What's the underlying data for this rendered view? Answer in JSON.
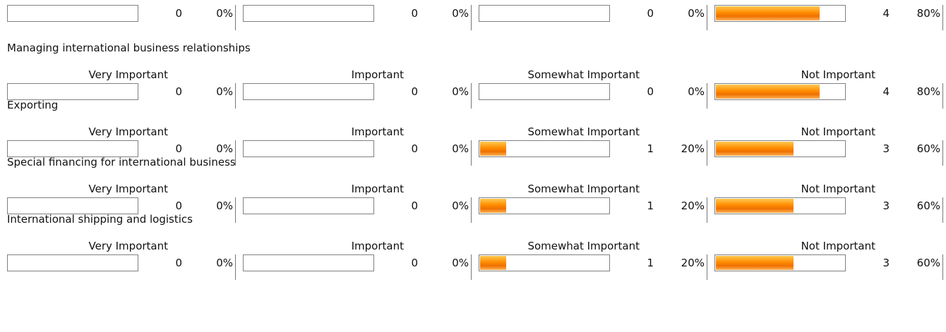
{
  "chart_data": {
    "type": "table",
    "colors": {
      "fill": "#ff8c00"
    },
    "items": [
      {
        "title": "",
        "headers": [
          "",
          "",
          "",
          ""
        ],
        "counts": [
          0,
          0,
          0,
          4
        ],
        "percents": [
          0,
          0,
          0,
          80
        ],
        "count_labels": [
          "0",
          "0",
          "0",
          "4"
        ],
        "pct_labels": [
          "0%",
          "0%",
          "0%",
          "80%"
        ]
      },
      {
        "title": "Managing international business relationships",
        "headers": [
          "Very Important",
          "Important",
          "Somewhat Important",
          "Not Important"
        ],
        "counts": [
          0,
          0,
          0,
          4
        ],
        "percents": [
          0,
          0,
          0,
          80
        ],
        "count_labels": [
          "0",
          "0",
          "0",
          "4"
        ],
        "pct_labels": [
          "0%",
          "0%",
          "0%",
          "80%"
        ]
      },
      {
        "title": "Exporting",
        "headers": [
          "Very Important",
          "Important",
          "Somewhat Important",
          "Not Important"
        ],
        "counts": [
          0,
          0,
          1,
          3
        ],
        "percents": [
          0,
          0,
          20,
          60
        ],
        "count_labels": [
          "0",
          "0",
          "1",
          "3"
        ],
        "pct_labels": [
          "0%",
          "0%",
          "20%",
          "60%"
        ]
      },
      {
        "title": "Special financing for international business",
        "headers": [
          "Very Important",
          "Important",
          "Somewhat Important",
          "Not Important"
        ],
        "counts": [
          0,
          0,
          1,
          3
        ],
        "percents": [
          0,
          0,
          20,
          60
        ],
        "count_labels": [
          "0",
          "0",
          "1",
          "3"
        ],
        "pct_labels": [
          "0%",
          "0%",
          "20%",
          "60%"
        ]
      },
      {
        "title": "International shipping and logistics",
        "headers": [
          "Very Important",
          "Important",
          "Somewhat Important",
          "Not Important"
        ],
        "counts": [
          0,
          0,
          1,
          3
        ],
        "percents": [
          0,
          0,
          20,
          60
        ],
        "count_labels": [
          "0",
          "0",
          "1",
          "3"
        ],
        "pct_labels": [
          "0%",
          "0%",
          "20%",
          "60%"
        ]
      }
    ]
  }
}
